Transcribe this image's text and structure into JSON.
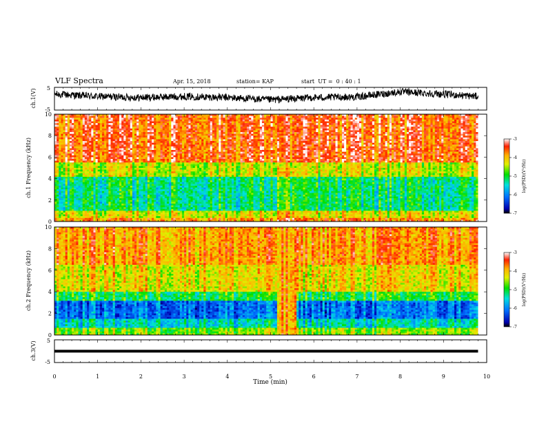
{
  "header": {
    "title": "VLF Spectra",
    "date": "Apr. 15, 2018",
    "station": "station= KAP",
    "start_ut": "start  UT =  0 : 40 : 1"
  },
  "chart_data": [
    {
      "type": "line",
      "name": "ch1-waveform",
      "ylabel": "ch.1(V)",
      "ylim": [
        -5,
        5
      ],
      "yticks": [
        "5",
        "-5"
      ],
      "x": [
        0,
        1,
        2,
        3,
        4,
        5,
        6,
        7,
        8,
        9,
        9.8
      ],
      "y": [
        2.0,
        1.0,
        0.5,
        1.0,
        0.5,
        -0.5,
        0.5,
        0.8,
        3.0,
        2.0,
        1.0
      ]
    },
    {
      "type": "heatmap",
      "name": "ch1-spectrogram",
      "ylabel": "ch.1 Frequency (kHz)",
      "ylim": [
        0,
        10
      ],
      "yticks": [
        "0",
        "2",
        "4",
        "6",
        "8",
        "10"
      ],
      "colorbar": {
        "label": "log(PSD)(V²/Hz)",
        "range": [
          -7,
          -3
        ],
        "ticks": [
          "-3",
          "-4",
          "-5",
          "-6",
          "-7"
        ]
      }
    },
    {
      "type": "heatmap",
      "name": "ch2-spectrogram",
      "ylabel": "ch.2 Frequency (kHz)",
      "ylim": [
        0,
        10
      ],
      "yticks": [
        "0",
        "2",
        "4",
        "6",
        "8",
        "10"
      ],
      "colorbar": {
        "label": "log(PSD)(V²/Hz)",
        "range": [
          -7,
          -3
        ],
        "ticks": [
          "-3",
          "-4",
          "-5",
          "-6",
          "-7"
        ]
      }
    },
    {
      "type": "line",
      "name": "ch3-waveform",
      "ylabel": "ch.3(V)",
      "ylim": [
        -5,
        5
      ],
      "yticks": [
        "5",
        "-5"
      ],
      "x": [
        0,
        9.8
      ],
      "y": [
        0,
        0
      ]
    }
  ],
  "xaxis": {
    "label": "Time (min)",
    "range": [
      0,
      10
    ],
    "ticks": [
      "0",
      "1",
      "2",
      "3",
      "4",
      "5",
      "6",
      "7",
      "8",
      "9",
      "10"
    ]
  }
}
